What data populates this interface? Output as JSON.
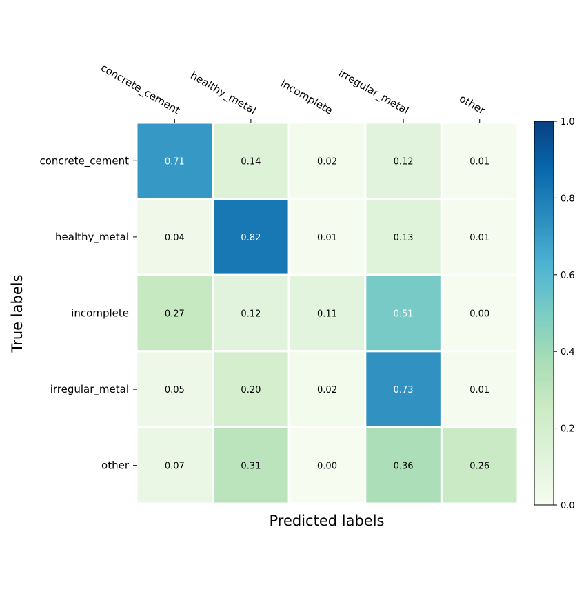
{
  "chart_data": {
    "type": "heatmap",
    "title": "",
    "xlabel": "Predicted labels",
    "ylabel": "True labels",
    "x_categories": [
      "concrete_cement",
      "healthy_metal",
      "incomplete",
      "irregular_metal",
      "other"
    ],
    "y_categories": [
      "concrete_cement",
      "healthy_metal",
      "incomplete",
      "irregular_metal",
      "other"
    ],
    "values": [
      [
        0.71,
        0.14,
        0.02,
        0.12,
        0.01
      ],
      [
        0.04,
        0.82,
        0.01,
        0.13,
        0.01
      ],
      [
        0.27,
        0.12,
        0.11,
        0.51,
        0.0
      ],
      [
        0.05,
        0.2,
        0.02,
        0.73,
        0.01
      ],
      [
        0.07,
        0.31,
        0.0,
        0.36,
        0.26
      ]
    ],
    "value_format": "0.00",
    "colormap": "GnBu",
    "colormap_stops": [
      "#f7fcf0",
      "#e0f3db",
      "#ccebc5",
      "#a8ddb5",
      "#7bccc4",
      "#4eb3d3",
      "#2b8cbe",
      "#0868ac",
      "#084081"
    ],
    "color_range": [
      0,
      1
    ],
    "colorbar_ticks": [
      "0.0",
      "0.2",
      "0.4",
      "0.6",
      "0.8",
      "1.0"
    ],
    "x_tick_position": "top",
    "grid_color": "#ffffff"
  }
}
